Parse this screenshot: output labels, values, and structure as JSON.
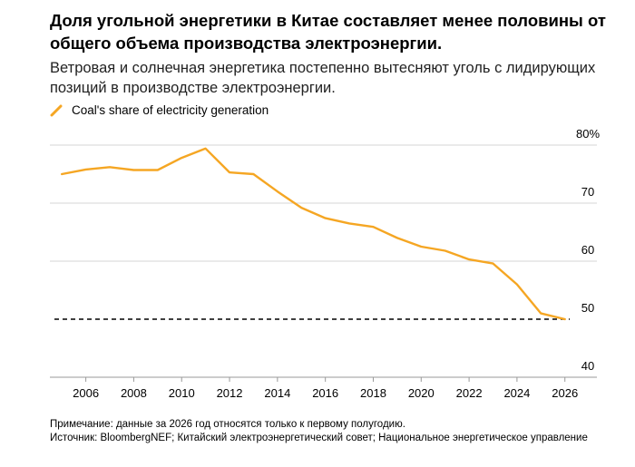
{
  "header": {
    "title": "Доля угольной энергетики в Китае составляет менее половины от общего объема производства электроэнергии.",
    "subtitle": "Ветровая и солнечная энергетика постепенно вытесняют уголь с лидирующих позиций в производстве электроэнергии."
  },
  "legend": {
    "label": "Coal's share of electricity generation",
    "color": "#f5a623"
  },
  "footer": {
    "note": "Примечание: данные за 2026 год относятся только к первому полугодию.",
    "source": "Источник: BloombergNEF; Китайский электроэнергетический совет; Национальное энергетическое управление"
  },
  "chart_data": {
    "type": "line",
    "title": "",
    "xlabel": "",
    "ylabel": "",
    "x": [
      2005,
      2006,
      2007,
      2008,
      2009,
      2010,
      2011,
      2012,
      2013,
      2014,
      2015,
      2016,
      2017,
      2018,
      2019,
      2020,
      2021,
      2022,
      2023,
      2024,
      2025,
      2026
    ],
    "series": [
      {
        "name": "Coal's share of electricity generation",
        "color": "#f5a623",
        "values": [
          75.0,
          75.8,
          76.2,
          75.7,
          75.7,
          77.8,
          79.4,
          75.3,
          75.0,
          72.0,
          69.2,
          67.4,
          66.5,
          65.9,
          64.0,
          62.5,
          61.8,
          60.3,
          59.6,
          56.0,
          51.0,
          50.0
        ]
      }
    ],
    "reference_line": {
      "y": 50,
      "style": "dashed",
      "color": "#000000"
    },
    "xlim": [
      2005,
      2026
    ],
    "ylim": [
      40,
      80
    ],
    "x_ticks": [
      2006,
      2008,
      2010,
      2012,
      2014,
      2016,
      2018,
      2020,
      2022,
      2024,
      2026
    ],
    "x_tick_labels": [
      "2006",
      "2008",
      "2010",
      "2012",
      "2014",
      "2016",
      "2018",
      "2020",
      "2022",
      "2024",
      "2026"
    ],
    "y_ticks": [
      40,
      50,
      60,
      70,
      80
    ],
    "y_tick_labels": [
      "40",
      "50",
      "60",
      "70",
      "80%"
    ],
    "grid": "horizontal",
    "y_axis_position": "right"
  }
}
